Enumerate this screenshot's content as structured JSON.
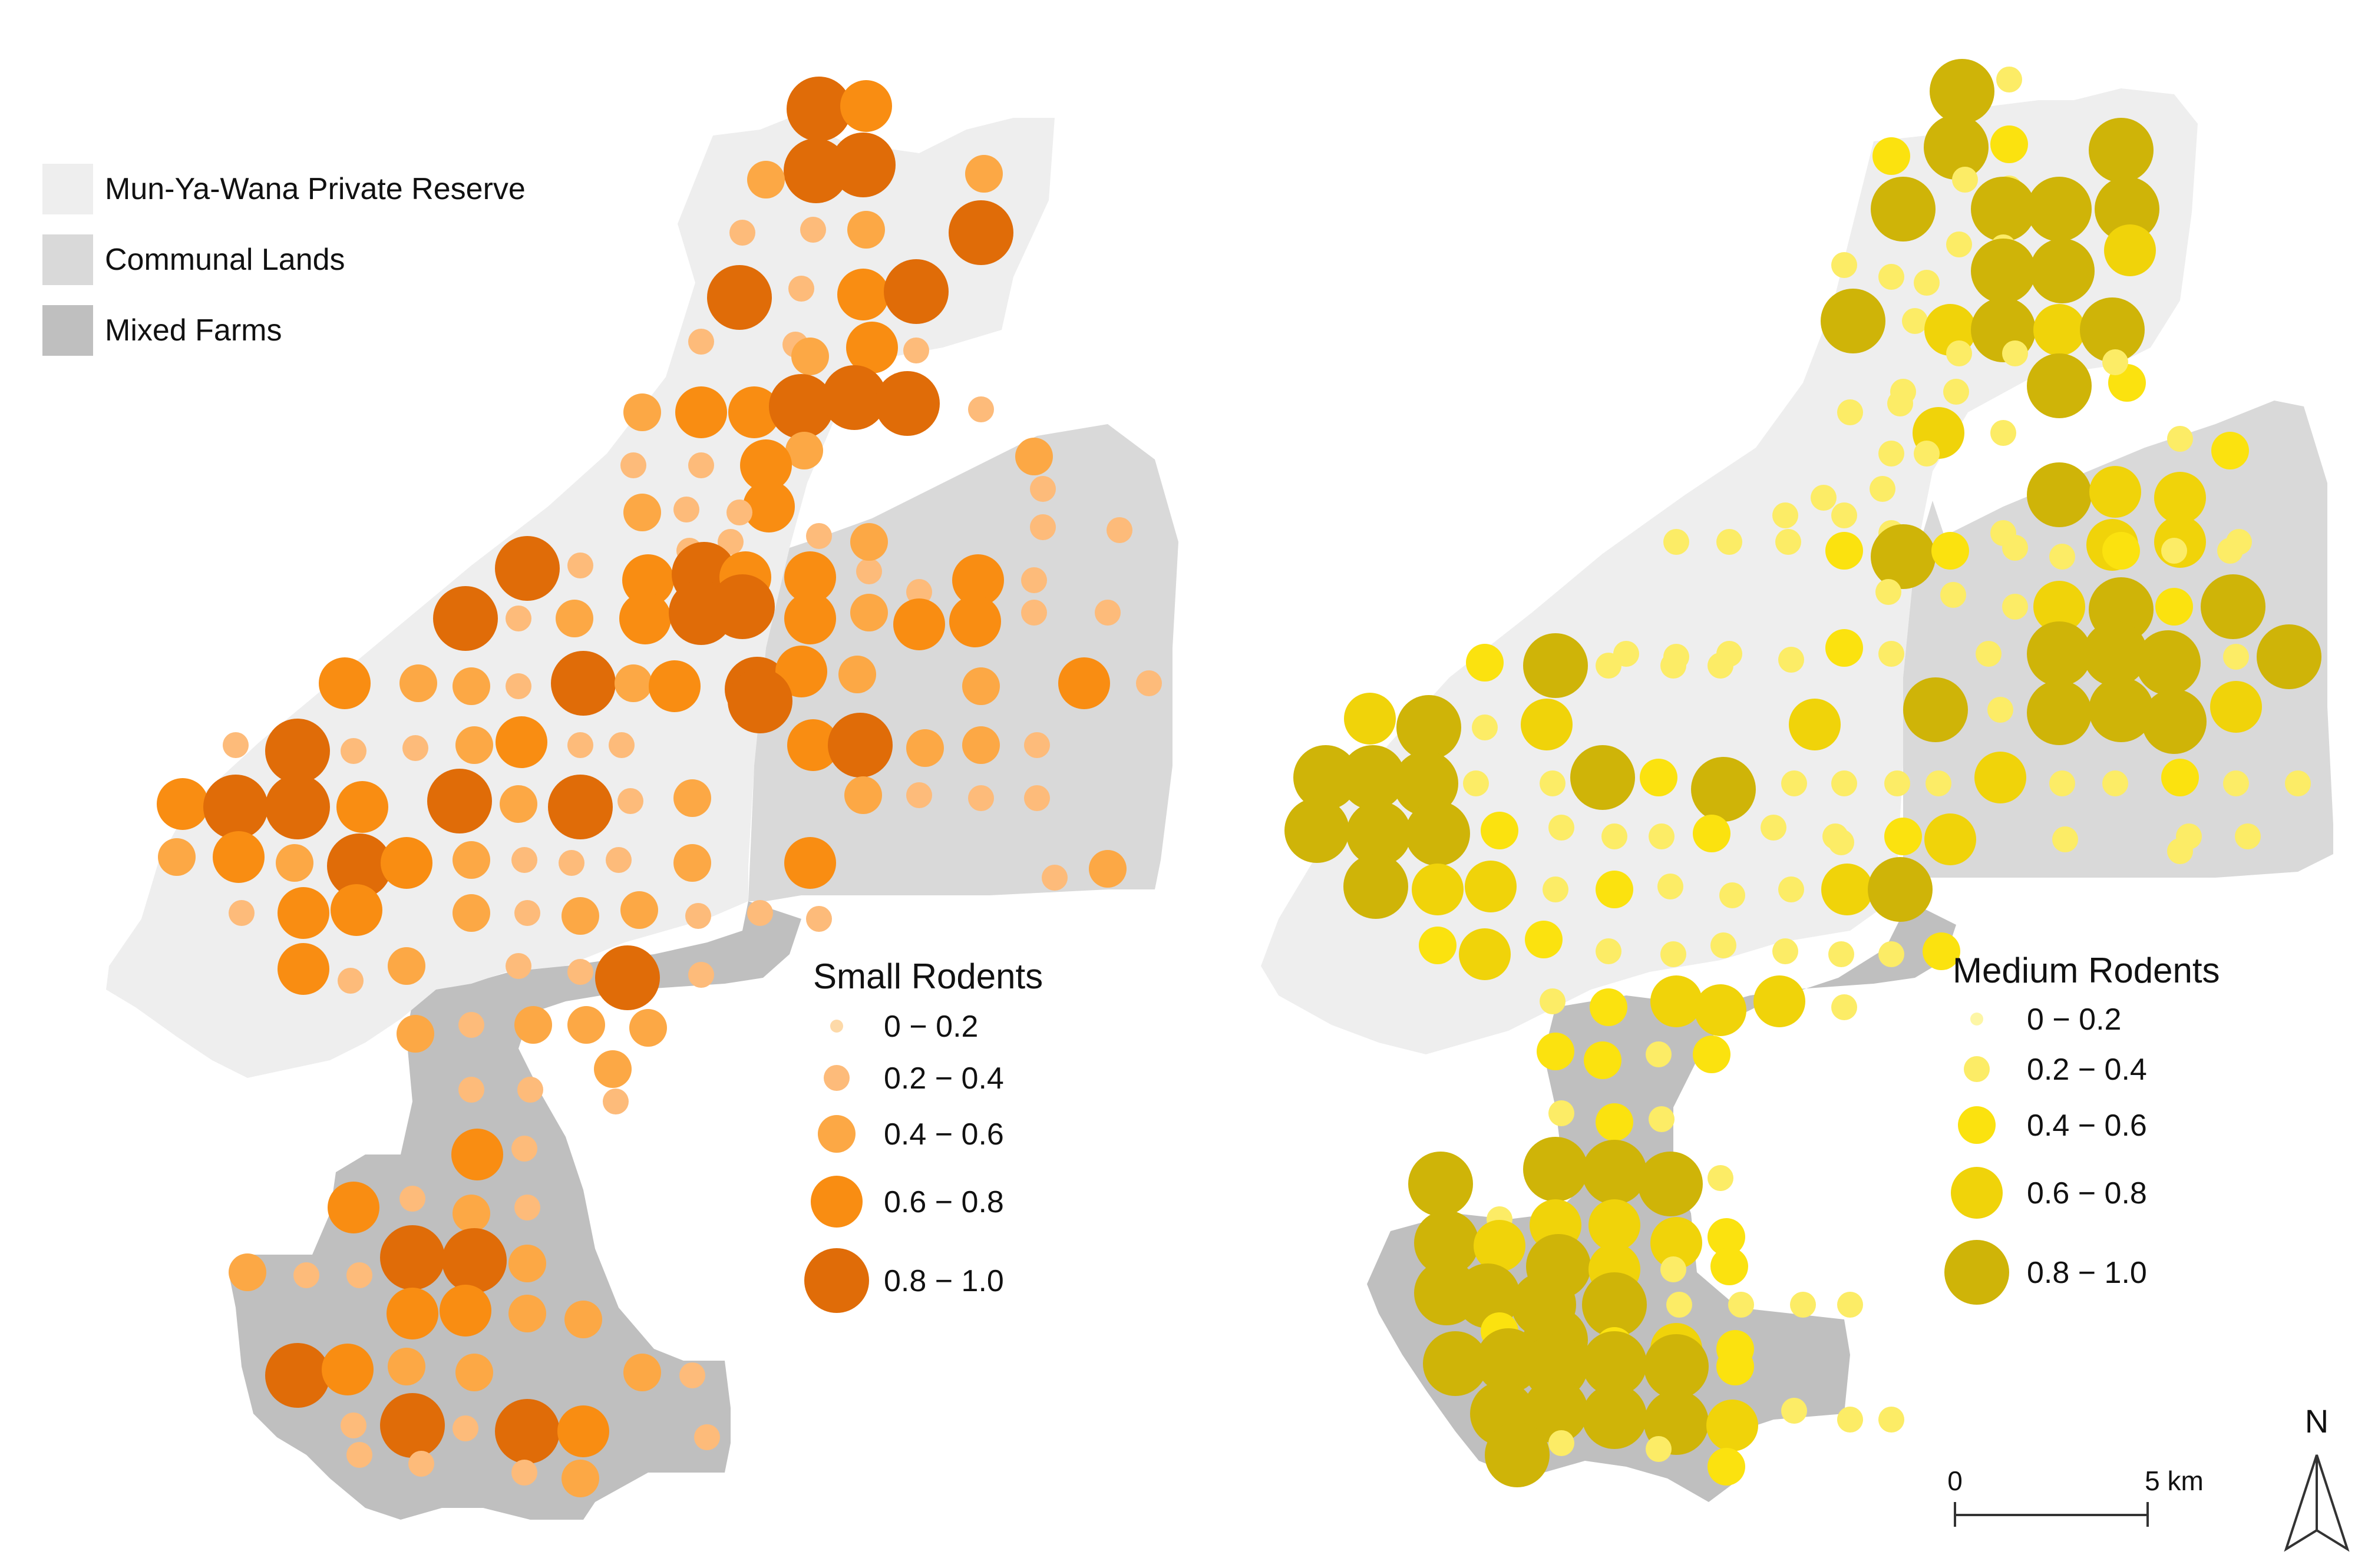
{
  "region_legend": {
    "items": [
      {
        "label": "Mun-Ya-Wana Private Reserve",
        "color": "#eeeeee"
      },
      {
        "label": "Communal Lands",
        "color": "#d9d9d9"
      },
      {
        "label": "Mixed Farms",
        "color": "#bfbfbf"
      }
    ]
  },
  "small_rodents": {
    "title": "Small Rodents",
    "classes": [
      {
        "label": "0 − 0.2",
        "color": "#fdd9a8"
      },
      {
        "label": "0.2 − 0.4",
        "color": "#fdbb7a"
      },
      {
        "label": "0.4 − 0.6",
        "color": "#fca845"
      },
      {
        "label": "0.6 − 0.8",
        "color": "#f98d12"
      },
      {
        "label": "0.8 − 1.0",
        "color": "#e06c08"
      }
    ]
  },
  "medium_rodents": {
    "title": "Medium Rodents",
    "classes": [
      {
        "label": "0 − 0.2",
        "color": "#fdf6a6"
      },
      {
        "label": "0.2 − 0.4",
        "color": "#fcec66"
      },
      {
        "label": "0.4 − 0.6",
        "color": "#fbe20f"
      },
      {
        "label": "0.6 − 0.8",
        "color": "#f0d30a"
      },
      {
        "label": "0.8 − 1.0",
        "color": "#cfb408"
      }
    ]
  },
  "scale_bar": {
    "start_label": "0",
    "end_label": "5 km"
  },
  "north_arrow": {
    "label": "N",
    "icon": "north-arrow-icon"
  }
}
